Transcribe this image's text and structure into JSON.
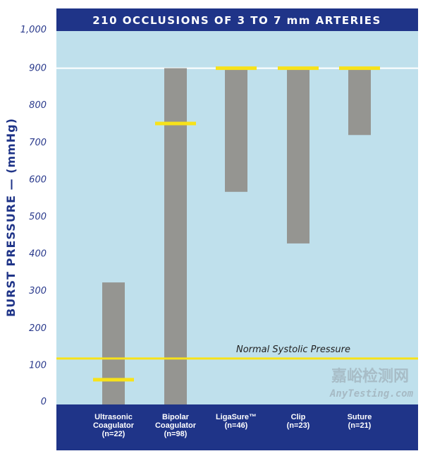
{
  "chart_data": {
    "type": "bar",
    "subtype": "floating-range with marker",
    "title": "210 OCCLUSIONS OF 3 TO 7 mm ARTERIES",
    "ylabel": "BURST PRESSURE — (mmHg)",
    "xlabel": "",
    "ylim": [
      0,
      1000
    ],
    "yticks": [
      "0",
      "100",
      "200",
      "300",
      "400",
      "500",
      "600",
      "700",
      "800",
      "900",
      "1,000"
    ],
    "ytick_values": [
      0,
      100,
      200,
      300,
      400,
      500,
      600,
      700,
      800,
      900,
      1000
    ],
    "grid": "horizontal at 900 only",
    "categories": [
      {
        "name": "Ultrasonic",
        "name2": "Coagulator",
        "n": "(n=22)",
        "min": 0,
        "max": 323,
        "marker": 61
      },
      {
        "name": "Bipolar",
        "name2": "Coagulator",
        "n": "(n=98)",
        "min": 0,
        "max": 900,
        "marker": 751
      },
      {
        "name": "LigaSure™",
        "name2": "",
        "n": "(n=46)",
        "min": 567,
        "max": 900,
        "marker": 900
      },
      {
        "name": "Clip",
        "name2": "",
        "n": "(n=23)",
        "min": 428,
        "max": 900,
        "marker": 900
      },
      {
        "name": "Suture",
        "name2": "",
        "n": "(n=21)",
        "min": 720,
        "max": 900,
        "marker": 900
      }
    ],
    "reference_line": {
      "label": "Normal Systolic Pressure",
      "value": 118
    },
    "colors": {
      "header": "#1f3488",
      "plot_bg": "#bfe0ec",
      "bar": "#959591",
      "marker": "#f7e21a",
      "axis_text": "#2a3a8c"
    }
  },
  "watermark": {
    "cn": "嘉峪检测网",
    "en": "AnyTesting.com"
  }
}
